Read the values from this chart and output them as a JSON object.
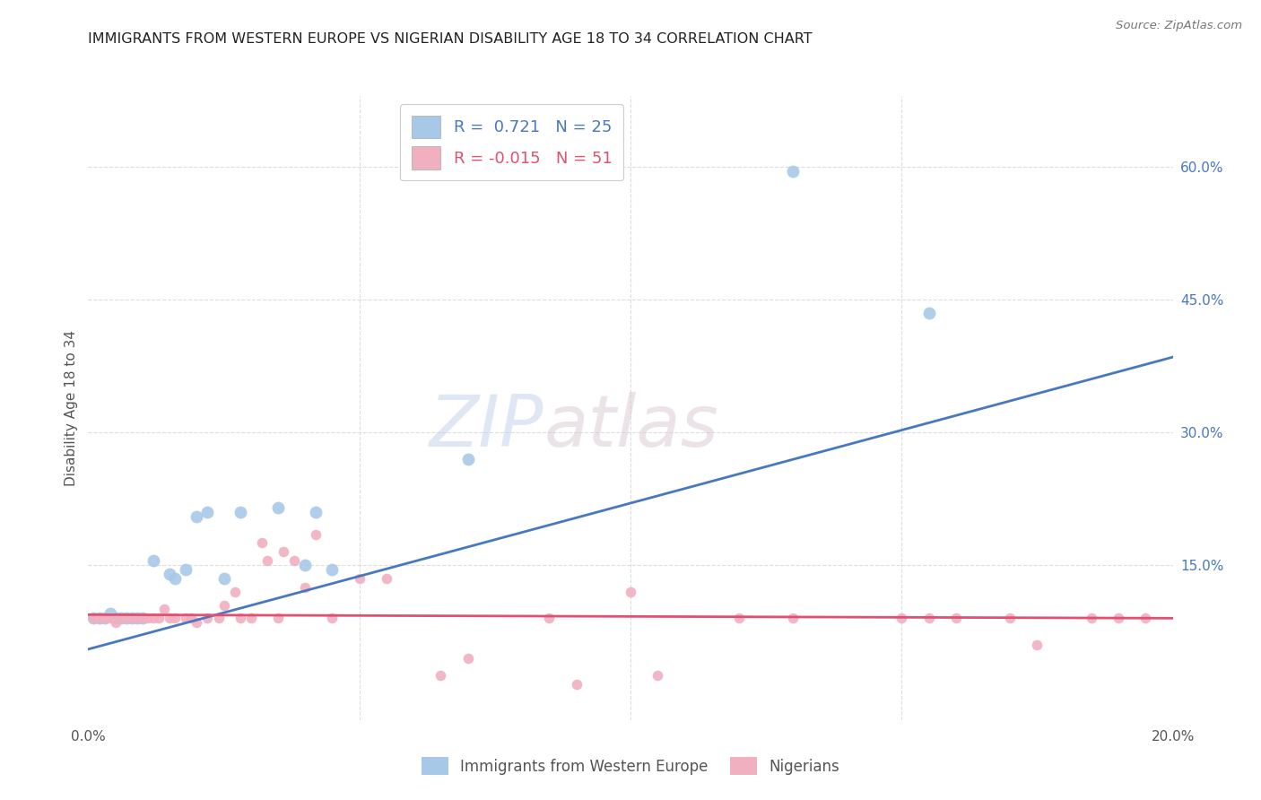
{
  "title": "IMMIGRANTS FROM WESTERN EUROPE VS NIGERIAN DISABILITY AGE 18 TO 34 CORRELATION CHART",
  "source": "Source: ZipAtlas.com",
  "ylabel": "Disability Age 18 to 34",
  "xlim": [
    0.0,
    0.2
  ],
  "ylim": [
    -0.025,
    0.68
  ],
  "xticks": [
    0.0,
    0.05,
    0.1,
    0.15,
    0.2
  ],
  "xticklabels": [
    "0.0%",
    "",
    "",
    "",
    "20.0%"
  ],
  "yticks_right": [
    0.0,
    0.15,
    0.3,
    0.45,
    0.6
  ],
  "yticklabels_right": [
    "",
    "15.0%",
    "30.0%",
    "45.0%",
    "60.0%"
  ],
  "blue_R": "0.721",
  "blue_N": "25",
  "pink_R": "-0.015",
  "pink_N": "51",
  "blue_color": "#a8c8e8",
  "pink_color": "#f0b0c0",
  "blue_line_color": "#4878c0",
  "pink_line_color": "#e05070",
  "watermark_zip": "ZIP",
  "watermark_atlas": "atlas",
  "blue_scatter_x": [
    0.001,
    0.002,
    0.003,
    0.004,
    0.005,
    0.006,
    0.007,
    0.008,
    0.009,
    0.01,
    0.012,
    0.015,
    0.016,
    0.018,
    0.02,
    0.022,
    0.025,
    0.028,
    0.035,
    0.04,
    0.042,
    0.045,
    0.07,
    0.13,
    0.155
  ],
  "blue_scatter_y": [
    0.09,
    0.09,
    0.09,
    0.095,
    0.09,
    0.09,
    0.09,
    0.09,
    0.09,
    0.09,
    0.155,
    0.14,
    0.135,
    0.145,
    0.205,
    0.21,
    0.135,
    0.21,
    0.215,
    0.15,
    0.21,
    0.145,
    0.27,
    0.595,
    0.435
  ],
  "pink_scatter_x": [
    0.001,
    0.002,
    0.003,
    0.004,
    0.005,
    0.006,
    0.007,
    0.008,
    0.009,
    0.01,
    0.011,
    0.012,
    0.013,
    0.014,
    0.015,
    0.016,
    0.018,
    0.019,
    0.02,
    0.022,
    0.024,
    0.025,
    0.027,
    0.028,
    0.03,
    0.032,
    0.033,
    0.035,
    0.036,
    0.038,
    0.04,
    0.042,
    0.045,
    0.05,
    0.055,
    0.065,
    0.07,
    0.085,
    0.09,
    0.1,
    0.105,
    0.12,
    0.13,
    0.15,
    0.155,
    0.16,
    0.17,
    0.175,
    0.185,
    0.19,
    0.195
  ],
  "pink_scatter_y": [
    0.09,
    0.09,
    0.09,
    0.09,
    0.085,
    0.09,
    0.09,
    0.09,
    0.09,
    0.09,
    0.09,
    0.09,
    0.09,
    0.1,
    0.09,
    0.09,
    0.09,
    0.09,
    0.085,
    0.09,
    0.09,
    0.105,
    0.12,
    0.09,
    0.09,
    0.175,
    0.155,
    0.09,
    0.165,
    0.155,
    0.125,
    0.185,
    0.09,
    0.135,
    0.135,
    0.025,
    0.045,
    0.09,
    0.015,
    0.12,
    0.025,
    0.09,
    0.09,
    0.09,
    0.09,
    0.09,
    0.09,
    0.06,
    0.09,
    0.09,
    0.09
  ],
  "blue_line_x": [
    0.0,
    0.2
  ],
  "blue_line_y": [
    0.055,
    0.385
  ],
  "pink_line_x": [
    0.0,
    0.2
  ],
  "pink_line_y": [
    0.094,
    0.09
  ],
  "blue_size": 100,
  "pink_size": 70,
  "grid_color": "#dddddd",
  "bg_color": "#ffffff"
}
